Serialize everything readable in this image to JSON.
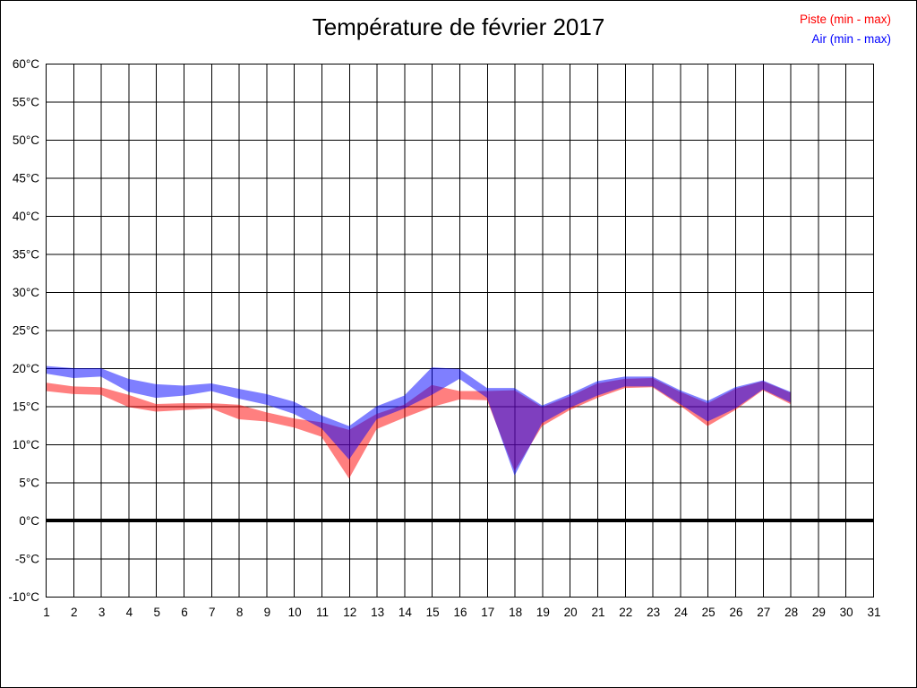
{
  "title": "Température de février 2017",
  "legend": {
    "piste": {
      "label": "Piste (min - max)",
      "color": "#FF0000"
    },
    "air": {
      "label": "Air (min - max)",
      "color": "#0000FF"
    }
  },
  "chart_data": {
    "type": "area",
    "subtype": "min-max-band",
    "title": "Température de février 2017",
    "xlabel": "",
    "ylabel": "",
    "xlim": [
      1,
      31
    ],
    "ylim": [
      -10,
      60
    ],
    "grid": true,
    "zero_line": true,
    "legend_position": "top-right",
    "x": [
      1,
      2,
      3,
      4,
      5,
      6,
      7,
      8,
      9,
      10,
      11,
      12,
      13,
      14,
      15,
      16,
      17,
      18,
      19,
      20,
      21,
      22,
      23,
      24,
      25,
      26,
      27,
      28
    ],
    "series": [
      {
        "name": "Piste (min - max)",
        "color": "#FF0000",
        "opacity": 0.5,
        "min": [
          17.0,
          16.6,
          16.5,
          14.9,
          14.3,
          14.5,
          14.7,
          13.3,
          13.0,
          12.2,
          11.0,
          5.5,
          12.0,
          13.5,
          14.9,
          15.9,
          15.8,
          6.5,
          12.4,
          14.5,
          16.1,
          17.4,
          17.5,
          15.1,
          12.4,
          14.5,
          17.1,
          15.3
        ],
        "max": [
          18.1,
          17.6,
          17.5,
          16.5,
          15.3,
          15.4,
          15.4,
          15.2,
          14.2,
          13.4,
          12.9,
          11.9,
          14.0,
          15.2,
          17.8,
          17.0,
          17.0,
          17.1,
          14.9,
          16.3,
          18.0,
          18.6,
          18.7,
          16.9,
          15.4,
          17.3,
          18.3,
          16.8
        ]
      },
      {
        "name": "Air (min - max)",
        "color": "#0000FF",
        "opacity": 0.5,
        "min": [
          19.3,
          18.7,
          18.9,
          16.9,
          16.1,
          16.4,
          17.0,
          16.0,
          15.2,
          14.0,
          12.1,
          8.0,
          13.3,
          14.7,
          16.5,
          18.6,
          16.1,
          5.9,
          12.8,
          14.8,
          16.4,
          17.6,
          17.6,
          15.3,
          13.0,
          14.7,
          17.2,
          15.5
        ],
        "max": [
          20.3,
          20.0,
          20.0,
          18.6,
          17.9,
          17.7,
          18.0,
          17.3,
          16.6,
          15.6,
          13.8,
          12.4,
          15.0,
          16.4,
          20.1,
          19.9,
          17.4,
          17.4,
          15.1,
          16.6,
          18.3,
          18.9,
          18.9,
          17.1,
          15.7,
          17.5,
          18.4,
          16.9
        ]
      }
    ],
    "x_tick_values": [
      1,
      2,
      3,
      4,
      5,
      6,
      7,
      8,
      9,
      10,
      11,
      12,
      13,
      14,
      15,
      16,
      17,
      18,
      19,
      20,
      21,
      22,
      23,
      24,
      25,
      26,
      27,
      28,
      29,
      30,
      31
    ],
    "x_tick_labels": [
      "1",
      "2",
      "3",
      "4",
      "5",
      "6",
      "7",
      "8",
      "9",
      "10",
      "11",
      "12",
      "13",
      "14",
      "15",
      "16",
      "17",
      "18",
      "19",
      "20",
      "21",
      "22",
      "23",
      "24",
      "25",
      "26",
      "27",
      "28",
      "29",
      "30",
      "31"
    ],
    "y_tick_values": [
      60,
      55,
      50,
      45,
      40,
      35,
      30,
      25,
      20,
      15,
      10,
      5,
      0,
      -5,
      -10
    ],
    "y_tick_labels": [
      "60°C",
      "55°C",
      "50°C",
      "45°C",
      "40°C",
      "35°C",
      "30°C",
      "25°C",
      "20°C",
      "15°C",
      "10°C",
      "5°C",
      "0°C",
      "-5°C",
      "-10°C"
    ]
  }
}
